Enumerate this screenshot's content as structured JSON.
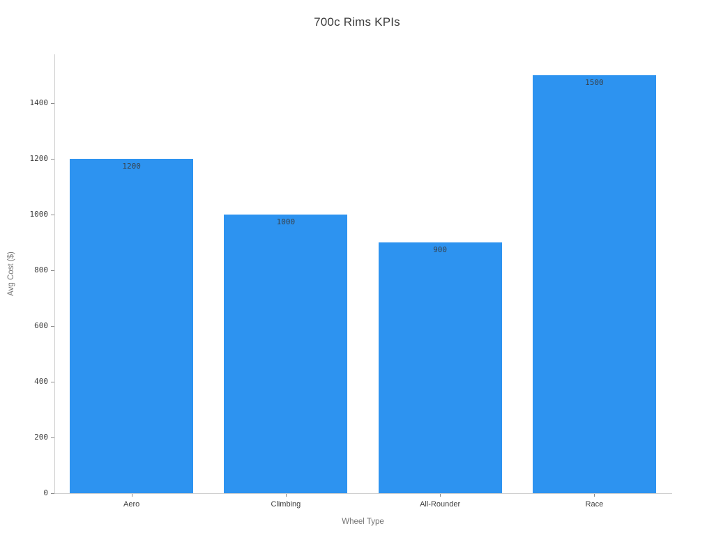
{
  "chart_data": {
    "type": "bar",
    "title": "700c Rims KPIs",
    "xlabel": "Wheel Type",
    "ylabel": "Avg Cost ($)",
    "categories": [
      "Aero",
      "Climbing",
      "All-Rounder",
      "Race"
    ],
    "values": [
      1200,
      1000,
      900,
      1500
    ],
    "value_labels": [
      "1200",
      "1000",
      "900",
      "1500"
    ],
    "yticks": [
      0,
      200,
      400,
      600,
      800,
      1000,
      1200,
      1400
    ],
    "ylim": [
      0,
      1575
    ],
    "grid": false,
    "legend": false,
    "colors": {
      "bar": "#2d93f0",
      "value_label": "#37414b",
      "tick_label": "#3d3d3d",
      "axis_title": "#757575",
      "title": "#3a3a3a",
      "spine": "#cfcfcf",
      "tick_mark": "#8a8a8a",
      "background": "#ffffff"
    }
  }
}
